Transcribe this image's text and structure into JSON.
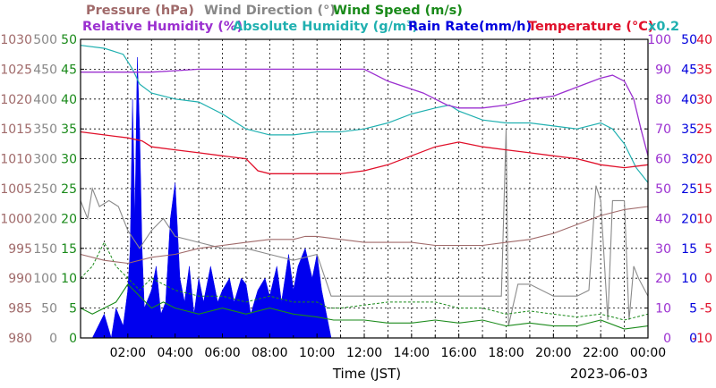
{
  "chart_data": {
    "type": "line",
    "legend": [
      {
        "key": "pressure",
        "text": "Pressure (hPa)",
        "color": "#a06a6a"
      },
      {
        "key": "wdir",
        "text": "Wind Direction (°)",
        "color": "#888888"
      },
      {
        "key": "wspd",
        "text": "Wind Speed (m/s)",
        "color": "#1a8a1a"
      },
      {
        "key": "rh",
        "text": "Relative Humidity (%)",
        "color": "#9b30d0"
      },
      {
        "key": "ah",
        "text": "Absolute Humidity (g/m³)",
        "color": "#20b0b0"
      },
      {
        "key": "rain",
        "text": "Rain Rate(mm/h)",
        "color": "#0000dd"
      },
      {
        "key": "temp",
        "text": "Temperature (°C)",
        "color": "#e0102a"
      },
      {
        "key": "x02",
        "text": "x0.2",
        "color": "#20b0b0"
      }
    ],
    "xlabel": "Time (JST)",
    "date": "2023-06-03",
    "x_range_hours": [
      0,
      24
    ],
    "x_ticks": [
      "02:00",
      "04:00",
      "06:00",
      "08:00",
      "10:00",
      "12:00",
      "14:00",
      "16:00",
      "18:00",
      "20:00",
      "22:00",
      "00:00"
    ],
    "left_axes": [
      {
        "key": "pressure",
        "color": "#a06a6a",
        "ticks": [
          "1030",
          "1025",
          "1020",
          "1015",
          "1010",
          "1005",
          "1000",
          "995",
          "990",
          "985",
          "980"
        ]
      },
      {
        "key": "wdir",
        "color": "#888888",
        "ticks": [
          "500",
          "450",
          "400",
          "350",
          "300",
          "250",
          "200",
          "150",
          "100",
          "50",
          "0"
        ]
      },
      {
        "key": "wspd",
        "color": "#1a8a1a",
        "ticks": [
          "50",
          "45",
          "40",
          "35",
          "30",
          "25",
          "20",
          "15",
          "10",
          "5",
          "0"
        ]
      }
    ],
    "right_axes": [
      {
        "key": "rh",
        "color": "#9b30d0",
        "ticks": [
          "100",
          "90",
          "80",
          "70",
          "60",
          "50",
          "40",
          "30",
          "20",
          "10",
          "0"
        ]
      },
      {
        "key": "rain",
        "color": "#0000dd",
        "ticks": [
          "50",
          "45",
          "40",
          "35",
          "30",
          "25",
          "20",
          "15",
          "10",
          "5",
          "0"
        ]
      },
      {
        "key": "temp",
        "color": "#e0102a",
        "ticks": [
          "40",
          "35",
          "30",
          "25",
          "20",
          "15",
          "10",
          "5",
          "0",
          "-5",
          "-10"
        ]
      }
    ],
    "series": [
      {
        "key": "rh",
        "scale": "rh",
        "points": [
          [
            0,
            89
          ],
          [
            2,
            89
          ],
          [
            2.3,
            89
          ],
          [
            2.6,
            89
          ],
          [
            3,
            89
          ],
          [
            4,
            89.5
          ],
          [
            5,
            90
          ],
          [
            7,
            90
          ],
          [
            9,
            90
          ],
          [
            11,
            90
          ],
          [
            12,
            90
          ],
          [
            13,
            86
          ],
          [
            14.5,
            82
          ],
          [
            15.5,
            78
          ],
          [
            16,
            77
          ],
          [
            17,
            77
          ],
          [
            18,
            78
          ],
          [
            19,
            80
          ],
          [
            20,
            81
          ],
          [
            21,
            84
          ],
          [
            22,
            87
          ],
          [
            22.5,
            88
          ],
          [
            23,
            86
          ],
          [
            23.4,
            80
          ],
          [
            23.7,
            70
          ],
          [
            24,
            61
          ]
        ]
      },
      {
        "key": "ah",
        "scale": "ah",
        "points": [
          [
            0,
            98
          ],
          [
            1,
            97
          ],
          [
            1.8,
            95
          ],
          [
            2.2,
            90
          ],
          [
            2.5,
            85
          ],
          [
            3,
            82
          ],
          [
            4,
            80
          ],
          [
            5,
            79
          ],
          [
            6,
            75
          ],
          [
            7,
            70
          ],
          [
            8,
            68
          ],
          [
            9,
            68
          ],
          [
            10,
            69
          ],
          [
            11,
            69
          ],
          [
            12,
            70
          ],
          [
            13,
            72
          ],
          [
            14,
            75
          ],
          [
            15,
            77
          ],
          [
            15.6,
            78
          ],
          [
            16,
            76
          ],
          [
            17,
            73
          ],
          [
            18,
            72
          ],
          [
            19,
            72
          ],
          [
            20,
            71
          ],
          [
            21,
            70
          ],
          [
            22,
            72
          ],
          [
            22.5,
            70
          ],
          [
            23,
            65
          ],
          [
            23.5,
            57
          ],
          [
            24,
            52
          ]
        ]
      },
      {
        "key": "temp",
        "scale": "temp",
        "points": [
          [
            0,
            24.5
          ],
          [
            1,
            24
          ],
          [
            2,
            23.5
          ],
          [
            2.6,
            23
          ],
          [
            3,
            22
          ],
          [
            4,
            21.5
          ],
          [
            5,
            21
          ],
          [
            6,
            20.5
          ],
          [
            7,
            20
          ],
          [
            7.5,
            18
          ],
          [
            8,
            17.5
          ],
          [
            9,
            17.5
          ],
          [
            10,
            17.5
          ],
          [
            11,
            17.5
          ],
          [
            12,
            18
          ],
          [
            13,
            19
          ],
          [
            14,
            20.5
          ],
          [
            15,
            22
          ],
          [
            16,
            22.8
          ],
          [
            17,
            22
          ],
          [
            18,
            21.5
          ],
          [
            19,
            21
          ],
          [
            20,
            20.5
          ],
          [
            21,
            20
          ],
          [
            22,
            19
          ],
          [
            23,
            18.5
          ],
          [
            24,
            19
          ]
        ]
      },
      {
        "key": "pressure",
        "scale": "pressure",
        "points": [
          [
            0,
            994
          ],
          [
            1,
            993
          ],
          [
            2,
            992.5
          ],
          [
            3,
            993.5
          ],
          [
            4,
            994
          ],
          [
            5,
            995
          ],
          [
            6,
            995.5
          ],
          [
            7,
            996
          ],
          [
            8,
            996.5
          ],
          [
            9,
            996.5
          ],
          [
            9.5,
            997
          ],
          [
            10,
            997
          ],
          [
            11,
            996.5
          ],
          [
            12,
            996
          ],
          [
            13,
            996
          ],
          [
            14,
            996
          ],
          [
            15,
            995.5
          ],
          [
            16,
            995.5
          ],
          [
            17,
            995.5
          ],
          [
            18,
            996
          ],
          [
            19,
            996.5
          ],
          [
            20,
            997.5
          ],
          [
            21,
            999
          ],
          [
            22,
            1000.5
          ],
          [
            23,
            1001.5
          ],
          [
            24,
            1002
          ]
        ]
      },
      {
        "key": "wdir",
        "scale": "wdir",
        "points": [
          [
            0,
            230
          ],
          [
            0.3,
            200
          ],
          [
            0.5,
            250
          ],
          [
            0.8,
            220
          ],
          [
            1.2,
            230
          ],
          [
            1.6,
            220
          ],
          [
            2,
            180
          ],
          [
            2.5,
            150
          ],
          [
            3,
            180
          ],
          [
            3.5,
            200
          ],
          [
            4,
            170
          ],
          [
            5,
            160
          ],
          [
            6,
            150
          ],
          [
            7,
            150
          ],
          [
            8,
            140
          ],
          [
            9,
            130
          ],
          [
            10,
            140
          ],
          [
            10.6,
            70
          ],
          [
            11,
            70
          ],
          [
            12,
            70
          ],
          [
            13,
            70
          ],
          [
            14,
            70
          ],
          [
            15,
            70
          ],
          [
            16,
            70
          ],
          [
            17,
            70
          ],
          [
            17.8,
            70
          ],
          [
            18,
            350
          ],
          [
            18.1,
            20
          ],
          [
            18.5,
            90
          ],
          [
            19,
            90
          ],
          [
            20,
            70
          ],
          [
            21,
            70
          ],
          [
            21.5,
            80
          ],
          [
            21.8,
            255
          ],
          [
            22,
            230
          ],
          [
            22.3,
            30
          ],
          [
            22.5,
            230
          ],
          [
            23,
            230
          ],
          [
            23.2,
            30
          ],
          [
            23.4,
            120
          ],
          [
            23.6,
            100
          ],
          [
            24,
            70
          ]
        ]
      },
      {
        "key": "wspd",
        "scale": "wspd",
        "points": [
          [
            0,
            5
          ],
          [
            0.5,
            4
          ],
          [
            1,
            5
          ],
          [
            1.5,
            6
          ],
          [
            2,
            9
          ],
          [
            2.5,
            7
          ],
          [
            3,
            5
          ],
          [
            3.5,
            6
          ],
          [
            4,
            5
          ],
          [
            5,
            4
          ],
          [
            6,
            5
          ],
          [
            7,
            4
          ],
          [
            8,
            5
          ],
          [
            9,
            4
          ],
          [
            10,
            3.5
          ],
          [
            10.7,
            3
          ],
          [
            11,
            3
          ],
          [
            12,
            3
          ],
          [
            13,
            2.5
          ],
          [
            14,
            2.5
          ],
          [
            15,
            3
          ],
          [
            16,
            2.5
          ],
          [
            17,
            3
          ],
          [
            18,
            2
          ],
          [
            19,
            2.5
          ],
          [
            20,
            2
          ],
          [
            21,
            2
          ],
          [
            22,
            3
          ],
          [
            23,
            1.5
          ],
          [
            24,
            2
          ]
        ]
      },
      {
        "key": "wspd_gust",
        "scale": "wspd",
        "points": [
          [
            0,
            10
          ],
          [
            0.5,
            12
          ],
          [
            1,
            16
          ],
          [
            1.5,
            12
          ],
          [
            2,
            10
          ],
          [
            2.5,
            8
          ],
          [
            3,
            10
          ],
          [
            3.5,
            9
          ],
          [
            4,
            8
          ],
          [
            5,
            7
          ],
          [
            6,
            7
          ],
          [
            7,
            6
          ],
          [
            8,
            7
          ],
          [
            9,
            6
          ],
          [
            10,
            6
          ],
          [
            10.5,
            5
          ],
          [
            11,
            5
          ],
          [
            12,
            5.5
          ],
          [
            13,
            6
          ],
          [
            14,
            6
          ],
          [
            15,
            6
          ],
          [
            16,
            5
          ],
          [
            17,
            5
          ],
          [
            18,
            4
          ],
          [
            19,
            4.5
          ],
          [
            20,
            4
          ],
          [
            21,
            3.5
          ],
          [
            22,
            4
          ],
          [
            23,
            3
          ],
          [
            24,
            4
          ]
        ]
      },
      {
        "key": "rain",
        "scale": "rain",
        "points": [
          [
            0,
            0
          ],
          [
            0.5,
            0
          ],
          [
            1,
            4
          ],
          [
            1.3,
            0
          ],
          [
            1.5,
            5
          ],
          [
            1.8,
            2
          ],
          [
            2,
            8
          ],
          [
            2.1,
            15
          ],
          [
            2.2,
            40
          ],
          [
            2.3,
            20
          ],
          [
            2.4,
            47
          ],
          [
            2.5,
            35
          ],
          [
            2.6,
            15
          ],
          [
            2.7,
            5
          ],
          [
            3,
            8
          ],
          [
            3.2,
            12
          ],
          [
            3.4,
            4
          ],
          [
            3.6,
            6
          ],
          [
            3.8,
            20
          ],
          [
            4,
            26
          ],
          [
            4.2,
            10
          ],
          [
            4.4,
            6
          ],
          [
            4.6,
            12
          ],
          [
            4.8,
            4
          ],
          [
            5,
            10
          ],
          [
            5.2,
            6
          ],
          [
            5.5,
            12
          ],
          [
            5.8,
            6
          ],
          [
            6,
            8
          ],
          [
            6.3,
            10
          ],
          [
            6.5,
            6
          ],
          [
            6.8,
            10
          ],
          [
            7,
            9
          ],
          [
            7.2,
            4
          ],
          [
            7.5,
            8
          ],
          [
            7.8,
            10
          ],
          [
            8,
            7
          ],
          [
            8.3,
            12
          ],
          [
            8.5,
            6
          ],
          [
            8.8,
            14
          ],
          [
            9,
            8
          ],
          [
            9.2,
            12
          ],
          [
            9.5,
            15
          ],
          [
            9.8,
            10
          ],
          [
            10,
            14
          ],
          [
            10.2,
            8
          ],
          [
            10.4,
            4
          ],
          [
            10.6,
            0
          ],
          [
            24,
            0
          ]
        ]
      }
    ]
  }
}
